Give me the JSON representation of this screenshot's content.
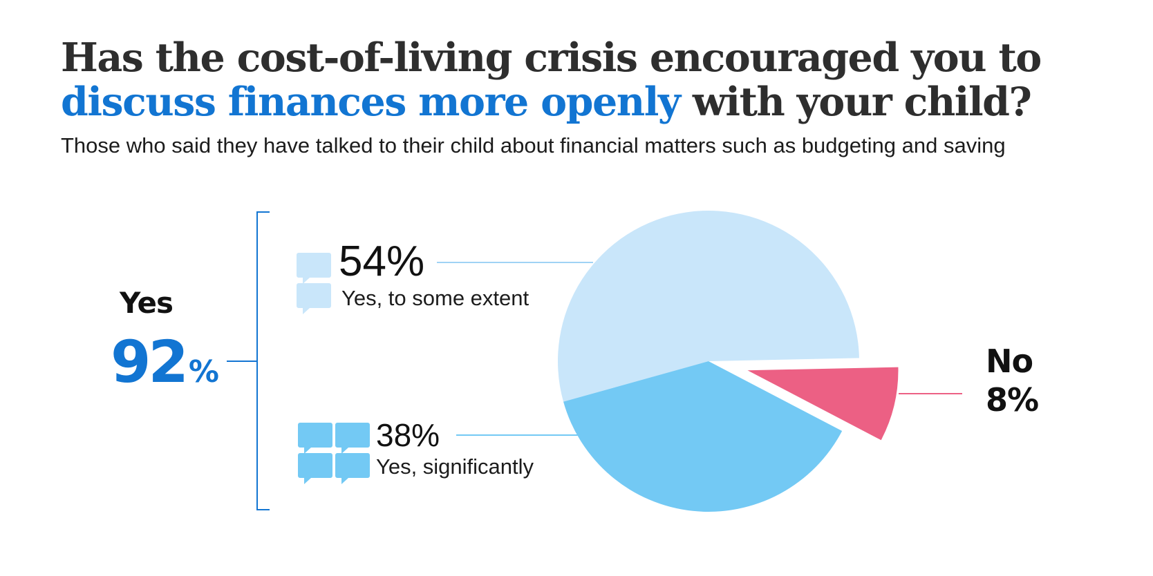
{
  "title_parts": {
    "line1": "Has the cost-of-living crisis encouraged you to",
    "highlight": "discuss finances more openly",
    "line2_rest": " with your child?"
  },
  "subtitle": "Those who said they have talked to their child about financial matters such as budgeting and saving",
  "yes_total": {
    "label": "Yes",
    "value": "92",
    "unit": "%"
  },
  "colors": {
    "some_extent": "#c9e6fa",
    "significantly": "#73c9f4",
    "no": "#ec6084",
    "accent": "#1275d2",
    "bracket": "#1275d2"
  },
  "chart_data": {
    "type": "pie",
    "title": "Has the cost-of-living crisis encouraged you to discuss finances more openly with your child?",
    "subtitle": "Those who said they have talked to their child about financial matters such as budgeting and saving",
    "slices": [
      {
        "label": "Yes, to some extent",
        "value": 54,
        "display": "54%",
        "color": "#c9e6fa",
        "exploded": false
      },
      {
        "label": "Yes, significantly",
        "value": 38,
        "display": "38%",
        "color": "#73c9f4",
        "exploded": false
      },
      {
        "label": "No",
        "value": 8,
        "display": "8%",
        "color": "#ec6084",
        "exploded": true
      }
    ],
    "groups": [
      {
        "label": "Yes",
        "value": 92,
        "members": [
          "Yes, to some extent",
          "Yes, significantly"
        ]
      }
    ],
    "legend": "none"
  }
}
